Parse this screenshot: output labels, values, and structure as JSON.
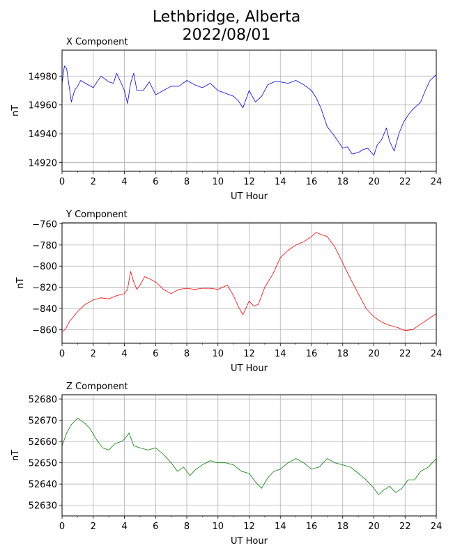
{
  "figure": {
    "title_line1": "Lethbridge, Alberta",
    "title_line2": "2022/08/01"
  },
  "chart_data": [
    {
      "type": "line",
      "title": "X Component",
      "xlabel": "UT Hour",
      "ylabel": "nT",
      "color": "#0000ff",
      "grid": true,
      "xlim": [
        0,
        24
      ],
      "ylim": [
        14914,
        14998
      ],
      "xticks": [
        0,
        2,
        4,
        6,
        8,
        10,
        12,
        14,
        16,
        18,
        20,
        22,
        24
      ],
      "yticks": [
        14920,
        14940,
        14960,
        14980
      ],
      "x": [
        0,
        0.15,
        0.3,
        0.6,
        0.8,
        1.0,
        1.2,
        1.5,
        2.0,
        2.5,
        3.0,
        3.3,
        3.5,
        3.8,
        4.0,
        4.2,
        4.4,
        4.6,
        4.8,
        5.2,
        5.6,
        6.0,
        6.5,
        7.0,
        7.5,
        8.0,
        8.5,
        9.0,
        9.5,
        10.0,
        10.5,
        11.0,
        11.3,
        11.6,
        12.0,
        12.4,
        12.8,
        13.2,
        13.6,
        14.0,
        14.5,
        15.0,
        15.5,
        16.0,
        16.3,
        16.6,
        17.0,
        17.5,
        18.0,
        18.3,
        18.6,
        19.0,
        19.3,
        19.6,
        20.0,
        20.2,
        20.5,
        20.8,
        21.0,
        21.3,
        21.6,
        21.9,
        22.2,
        22.5,
        22.8,
        23.0,
        23.3,
        23.6,
        24.0
      ],
      "values": [
        14975,
        14987,
        14985,
        14962,
        14970,
        14973,
        14977,
        14975,
        14972,
        14980,
        14976,
        14975,
        14982,
        14975,
        14970,
        14961,
        14975,
        14982,
        14970,
        14970,
        14976,
        14967,
        14970,
        14973,
        14973,
        14977,
        14974,
        14972,
        14975,
        14970,
        14968,
        14966,
        14963,
        14958,
        14970,
        14962,
        14966,
        14974,
        14976,
        14976,
        14975,
        14977,
        14974,
        14970,
        14965,
        14958,
        14945,
        14938,
        14930,
        14931,
        14926,
        14927,
        14929,
        14930,
        14925,
        14932,
        14936,
        14944,
        14935,
        14928,
        14940,
        14948,
        14953,
        14957,
        14960,
        14962,
        14970,
        14977,
        14981
      ]
    },
    {
      "type": "line",
      "title": "Y Component",
      "xlabel": "UT Hour",
      "ylabel": "nT",
      "color": "#ff0000",
      "grid": true,
      "xlim": [
        0,
        24
      ],
      "ylim": [
        -873,
        -759
      ],
      "xticks": [
        0,
        2,
        4,
        6,
        8,
        10,
        12,
        14,
        16,
        18,
        20,
        22,
        24
      ],
      "yticks": [
        -860,
        -840,
        -820,
        -800,
        -780,
        -760
      ],
      "x": [
        0,
        0.2,
        0.5,
        1.0,
        1.5,
        2.0,
        2.5,
        3.0,
        3.5,
        4.0,
        4.2,
        4.4,
        4.6,
        4.8,
        5.0,
        5.3,
        5.6,
        6.0,
        6.5,
        7.0,
        7.5,
        8.0,
        8.5,
        9.0,
        9.5,
        10.0,
        10.3,
        10.6,
        11.0,
        11.3,
        11.6,
        12.0,
        12.3,
        12.6,
        13.0,
        13.5,
        14.0,
        14.5,
        15.0,
        15.5,
        16.0,
        16.3,
        16.6,
        17.0,
        17.5,
        18.0,
        18.5,
        19.0,
        19.5,
        20.0,
        20.5,
        21.0,
        21.5,
        22.0,
        22.5,
        23.0,
        23.5,
        24.0
      ],
      "values": [
        -862,
        -860,
        -852,
        -843,
        -836,
        -832,
        -830,
        -831,
        -828,
        -826,
        -822,
        -805,
        -815,
        -822,
        -818,
        -810,
        -812,
        -815,
        -822,
        -826,
        -822,
        -821,
        -822,
        -821,
        -821,
        -822,
        -820,
        -818,
        -828,
        -838,
        -846,
        -833,
        -838,
        -836,
        -820,
        -808,
        -792,
        -785,
        -780,
        -777,
        -772,
        -768,
        -770,
        -772,
        -782,
        -797,
        -812,
        -826,
        -840,
        -848,
        -853,
        -856,
        -858,
        -861,
        -860,
        -855,
        -850,
        -845
      ]
    },
    {
      "type": "line",
      "title": "Z Component",
      "xlabel": "UT Hour",
      "ylabel": "nT",
      "color": "#008000",
      "grid": true,
      "xlim": [
        0,
        24
      ],
      "ylim": [
        52625,
        52682
      ],
      "xticks": [
        0,
        2,
        4,
        6,
        8,
        10,
        12,
        14,
        16,
        18,
        20,
        22,
        24
      ],
      "yticks": [
        52630,
        52640,
        52650,
        52660,
        52670,
        52680
      ],
      "x": [
        0,
        0.3,
        0.6,
        1.0,
        1.4,
        1.8,
        2.2,
        2.6,
        3.0,
        3.4,
        3.8,
        4.0,
        4.3,
        4.6,
        5.0,
        5.5,
        6.0,
        6.5,
        7.0,
        7.4,
        7.8,
        8.2,
        8.6,
        9.0,
        9.5,
        10.0,
        10.5,
        11.0,
        11.5,
        12.0,
        12.4,
        12.8,
        13.2,
        13.6,
        14.0,
        14.5,
        15.0,
        15.5,
        16.0,
        16.5,
        17.0,
        17.5,
        18.0,
        18.5,
        19.0,
        19.5,
        20.0,
        20.3,
        20.6,
        21.0,
        21.4,
        21.8,
        22.2,
        22.6,
        23.0,
        23.5,
        24.0
      ],
      "values": [
        52658,
        52664,
        52668,
        52671,
        52669,
        52666,
        52661,
        52657,
        52656,
        52659,
        52660,
        52661,
        52664,
        52658,
        52657,
        52656,
        52657,
        52654,
        52650,
        52646,
        52648,
        52644,
        52647,
        52649,
        52651,
        52650,
        52650,
        52649,
        52646,
        52645,
        52641,
        52638,
        52643,
        52646,
        52647,
        52650,
        52652,
        52650,
        52647,
        52648,
        52652,
        52650,
        52649,
        52648,
        52645,
        52642,
        52638,
        52635,
        52637,
        52639,
        52636,
        52638,
        52642,
        52642,
        52646,
        52648,
        52652
      ]
    }
  ]
}
